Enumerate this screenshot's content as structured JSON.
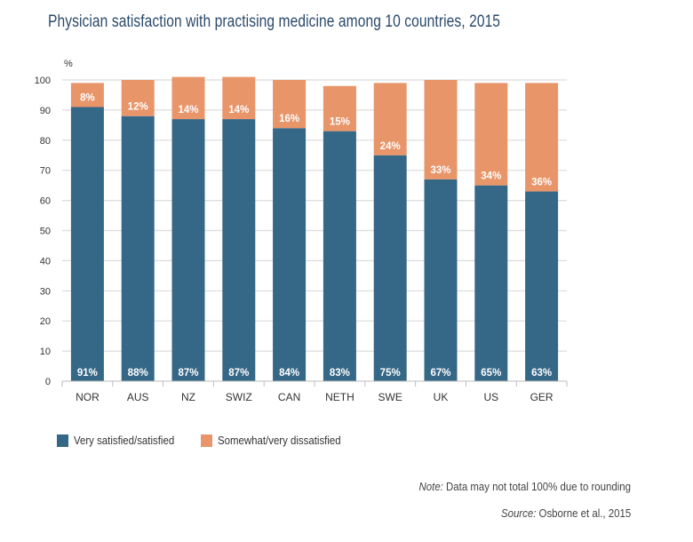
{
  "chart_data": {
    "type": "bar",
    "stacked": true,
    "title": "Physician satisfaction with practising medicine among 10 countries, 2015",
    "ylabel": "%",
    "xlabel": "",
    "ylim": [
      0,
      100
    ],
    "yticks": [
      0,
      10,
      20,
      30,
      40,
      50,
      60,
      70,
      80,
      90,
      100
    ],
    "grid": true,
    "categories": [
      "NOR",
      "AUS",
      "NZ",
      "SWIZ",
      "CAN",
      "NETH",
      "SWE",
      "UK",
      "US",
      "GER"
    ],
    "series": [
      {
        "name": "Very satisfied/satisfied",
        "color": "#356787",
        "values": [
          91,
          88,
          87,
          87,
          84,
          83,
          75,
          67,
          65,
          63
        ]
      },
      {
        "name": "Somewhat/very dissatisfied",
        "color": "#e8956a",
        "values": [
          8,
          12,
          14,
          14,
          16,
          15,
          24,
          33,
          34,
          36
        ]
      }
    ],
    "legend": "bottom-left"
  },
  "note": {
    "label": "Note:",
    "text": " Data may not total 100% due to rounding"
  },
  "source": {
    "label": "Source:",
    "text": " Osborne et al., 2015"
  }
}
